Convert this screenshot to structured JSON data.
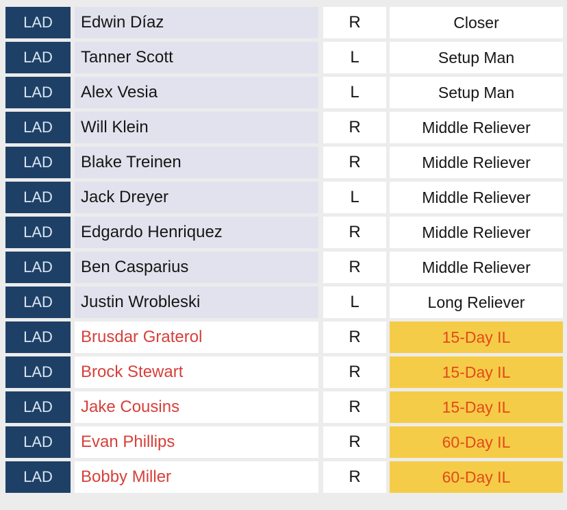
{
  "table": {
    "description": "Bullpen roster table",
    "columns": [
      "team",
      "player",
      "hand",
      "role"
    ],
    "rows": [
      {
        "team": "LAD",
        "player": "Edwin Díaz",
        "hand": "R",
        "role": "Closer",
        "status": "active"
      },
      {
        "team": "LAD",
        "player": "Tanner Scott",
        "hand": "L",
        "role": "Setup Man",
        "status": "active"
      },
      {
        "team": "LAD",
        "player": "Alex Vesia",
        "hand": "L",
        "role": "Setup Man",
        "status": "active"
      },
      {
        "team": "LAD",
        "player": "Will Klein",
        "hand": "R",
        "role": "Middle Reliever",
        "status": "active"
      },
      {
        "team": "LAD",
        "player": "Blake Treinen",
        "hand": "R",
        "role": "Middle Reliever",
        "status": "active"
      },
      {
        "team": "LAD",
        "player": "Jack Dreyer",
        "hand": "L",
        "role": "Middle Reliever",
        "status": "active"
      },
      {
        "team": "LAD",
        "player": "Edgardo Henriquez",
        "hand": "R",
        "role": "Middle Reliever",
        "status": "active"
      },
      {
        "team": "LAD",
        "player": "Ben Casparius",
        "hand": "R",
        "role": "Middle Reliever",
        "status": "active"
      },
      {
        "team": "LAD",
        "player": "Justin Wrobleski",
        "hand": "L",
        "role": "Long Reliever",
        "status": "active"
      },
      {
        "team": "LAD",
        "player": "Brusdar Graterol",
        "hand": "R",
        "role": "15-Day IL",
        "status": "il"
      },
      {
        "team": "LAD",
        "player": "Brock Stewart",
        "hand": "R",
        "role": "15-Day IL",
        "status": "il"
      },
      {
        "team": "LAD",
        "player": "Jake Cousins",
        "hand": "R",
        "role": "15-Day IL",
        "status": "il"
      },
      {
        "team": "LAD",
        "player": "Evan Phillips",
        "hand": "R",
        "role": "60-Day IL",
        "status": "il"
      },
      {
        "team": "LAD",
        "player": "Bobby Miller",
        "hand": "R",
        "role": "60-Day IL",
        "status": "il"
      }
    ]
  },
  "colors": {
    "bg": "#ececec",
    "navy": "#1f4066",
    "badge_text": "#d9e5f2",
    "lavender": "#e2e2ee",
    "cell_white": "#ffffff",
    "yellow": "#f5cc47",
    "il_text_red": "#e2491c",
    "name_red": "#d6403a",
    "text_dark": "#161616"
  }
}
